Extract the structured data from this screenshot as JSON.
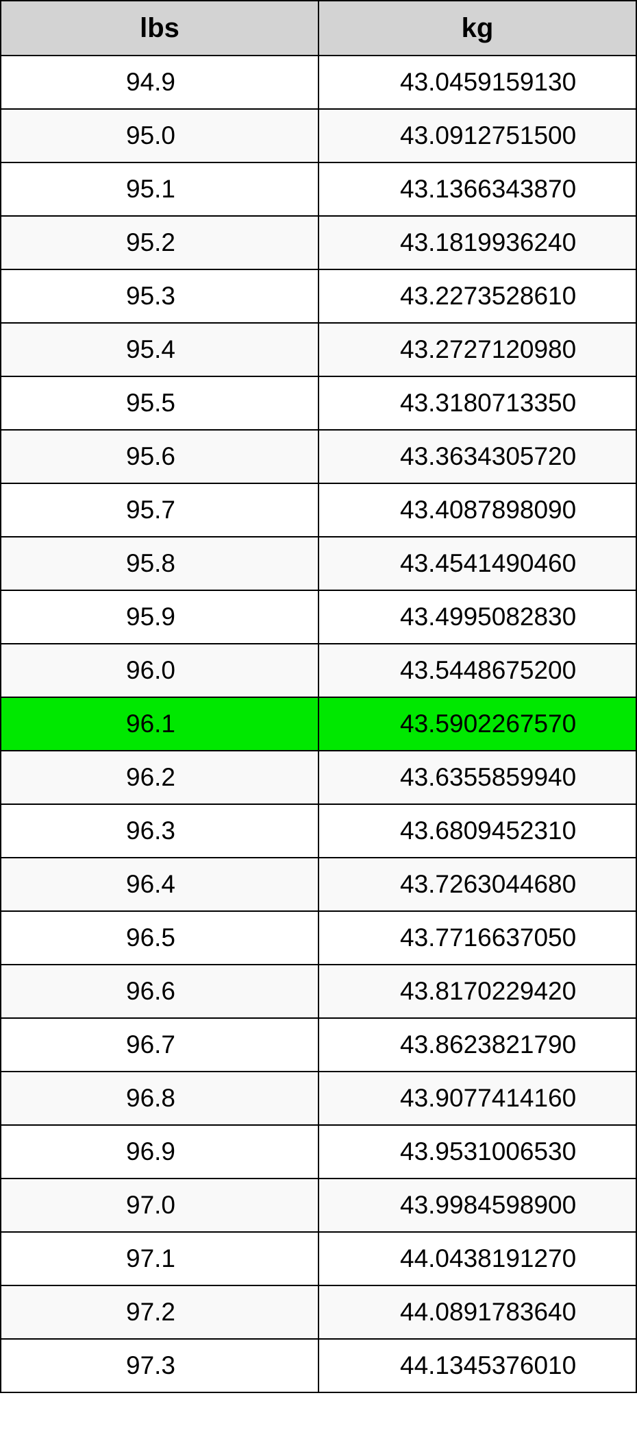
{
  "table": {
    "columns": [
      "lbs",
      "kg"
    ],
    "header_bg": "#d3d3d3",
    "header_fontsize": 40,
    "cell_fontsize": 37,
    "border_color": "#000000",
    "row_alt_bg": "#f9f9f9",
    "row_bg": "#ffffff",
    "highlight_bg": "#00e800",
    "highlight_index": 12,
    "rows": [
      {
        "lbs": "94.9",
        "kg": "43.0459159130"
      },
      {
        "lbs": "95.0",
        "kg": "43.0912751500"
      },
      {
        "lbs": "95.1",
        "kg": "43.1366343870"
      },
      {
        "lbs": "95.2",
        "kg": "43.1819936240"
      },
      {
        "lbs": "95.3",
        "kg": "43.2273528610"
      },
      {
        "lbs": "95.4",
        "kg": "43.2727120980"
      },
      {
        "lbs": "95.5",
        "kg": "43.3180713350"
      },
      {
        "lbs": "95.6",
        "kg": "43.3634305720"
      },
      {
        "lbs": "95.7",
        "kg": "43.4087898090"
      },
      {
        "lbs": "95.8",
        "kg": "43.4541490460"
      },
      {
        "lbs": "95.9",
        "kg": "43.4995082830"
      },
      {
        "lbs": "96.0",
        "kg": "43.5448675200"
      },
      {
        "lbs": "96.1",
        "kg": "43.5902267570"
      },
      {
        "lbs": "96.2",
        "kg": "43.6355859940"
      },
      {
        "lbs": "96.3",
        "kg": "43.6809452310"
      },
      {
        "lbs": "96.4",
        "kg": "43.7263044680"
      },
      {
        "lbs": "96.5",
        "kg": "43.7716637050"
      },
      {
        "lbs": "96.6",
        "kg": "43.8170229420"
      },
      {
        "lbs": "96.7",
        "kg": "43.8623821790"
      },
      {
        "lbs": "96.8",
        "kg": "43.9077414160"
      },
      {
        "lbs": "96.9",
        "kg": "43.9531006530"
      },
      {
        "lbs": "97.0",
        "kg": "43.9984598900"
      },
      {
        "lbs": "97.1",
        "kg": "44.0438191270"
      },
      {
        "lbs": "97.2",
        "kg": "44.0891783640"
      },
      {
        "lbs": "97.3",
        "kg": "44.1345376010"
      }
    ]
  }
}
